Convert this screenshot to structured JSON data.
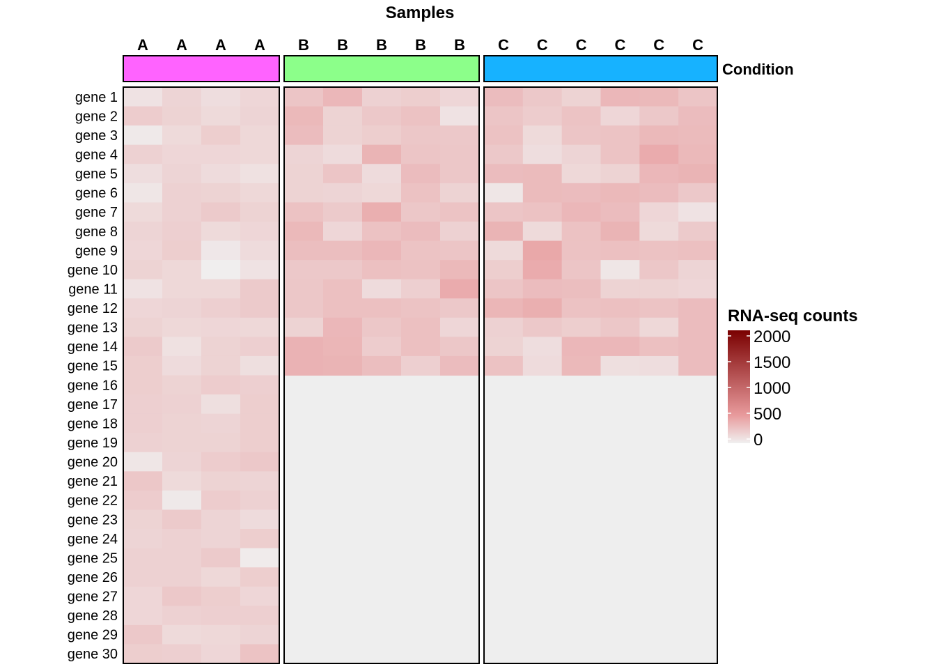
{
  "chart_data": {
    "type": "heatmap",
    "title": "Samples",
    "annotation_label": "Condition",
    "legend": {
      "title": "RNA-seq counts",
      "ticks": [
        "2000",
        "1500",
        "1000",
        "500",
        "0"
      ],
      "tick_values": [
        2000,
        1500,
        1000,
        500,
        0
      ],
      "range": [
        0,
        2000
      ],
      "placement": "right",
      "colors": {
        "low": "#F0F0F0",
        "mid": "#E89A9C",
        "high": "#7A0000",
        "na": "#EEEEEE"
      }
    },
    "groups": [
      {
        "name": "A",
        "color": "#FF63FF",
        "columns": [
          "A",
          "A",
          "A",
          "A"
        ],
        "n_genes": 30
      },
      {
        "name": "B",
        "color": "#8CFF8A",
        "columns": [
          "B",
          "B",
          "B",
          "B",
          "B"
        ],
        "n_genes": 15
      },
      {
        "name": "C",
        "color": "#17B2FF",
        "columns": [
          "C",
          "C",
          "C",
          "C",
          "C",
          "C"
        ],
        "n_genes": 15
      }
    ],
    "genes": [
      "gene 1",
      "gene 2",
      "gene 3",
      "gene 4",
      "gene 5",
      "gene 6",
      "gene 7",
      "gene 8",
      "gene 9",
      "gene 10",
      "gene 11",
      "gene 12",
      "gene 13",
      "gene 14",
      "gene 15",
      "gene 16",
      "gene 17",
      "gene 18",
      "gene 19",
      "gene 20",
      "gene 21",
      "gene 22",
      "gene 23",
      "gene 24",
      "gene 25",
      "gene 26",
      "gene 27",
      "gene 28",
      "gene 29",
      "gene 30"
    ],
    "values": {
      "A": [
        [
          80,
          160,
          110,
          150
        ],
        [
          210,
          170,
          130,
          160
        ],
        [
          40,
          130,
          200,
          140
        ],
        [
          180,
          150,
          150,
          140
        ],
        [
          110,
          160,
          120,
          90
        ],
        [
          60,
          180,
          170,
          140
        ],
        [
          130,
          180,
          220,
          170
        ],
        [
          160,
          190,
          130,
          150
        ],
        [
          150,
          200,
          50,
          120
        ],
        [
          170,
          140,
          10,
          80
        ],
        [
          80,
          140,
          140,
          220
        ],
        [
          150,
          160,
          190,
          220
        ],
        [
          170,
          140,
          150,
          140
        ],
        [
          220,
          90,
          170,
          190
        ],
        [
          200,
          120,
          170,
          100
        ],
        [
          200,
          170,
          210,
          190
        ],
        [
          190,
          180,
          100,
          200
        ],
        [
          190,
          170,
          160,
          200
        ],
        [
          180,
          170,
          170,
          200
        ],
        [
          60,
          160,
          210,
          230
        ],
        [
          240,
          130,
          170,
          160
        ],
        [
          210,
          40,
          210,
          180
        ],
        [
          170,
          220,
          160,
          120
        ],
        [
          160,
          180,
          160,
          200
        ],
        [
          180,
          180,
          220,
          30
        ],
        [
          180,
          180,
          140,
          200
        ],
        [
          150,
          230,
          200,
          150
        ],
        [
          150,
          180,
          190,
          190
        ],
        [
          230,
          130,
          140,
          160
        ],
        [
          200,
          190,
          150,
          260
        ]
      ],
      "B": [
        [
          250,
          330,
          180,
          200,
          150
        ],
        [
          320,
          170,
          230,
          270,
          80
        ],
        [
          300,
          170,
          200,
          240,
          230
        ],
        [
          160,
          120,
          350,
          250,
          240
        ],
        [
          170,
          250,
          120,
          300,
          240
        ],
        [
          170,
          160,
          140,
          270,
          170
        ],
        [
          270,
          220,
          380,
          240,
          260
        ],
        [
          320,
          150,
          270,
          300,
          180
        ],
        [
          290,
          290,
          330,
          260,
          250
        ],
        [
          230,
          230,
          280,
          270,
          320
        ],
        [
          240,
          280,
          120,
          190,
          400
        ],
        [
          240,
          280,
          280,
          260,
          230
        ],
        [
          170,
          330,
          240,
          280,
          150
        ],
        [
          360,
          340,
          210,
          280,
          240
        ],
        [
          360,
          350,
          290,
          190,
          300
        ]
      ],
      "C": [
        [
          300,
          230,
          170,
          330,
          320,
          250
        ],
        [
          250,
          210,
          260,
          150,
          230,
          300
        ],
        [
          270,
          130,
          250,
          260,
          320,
          310
        ],
        [
          230,
          110,
          160,
          260,
          400,
          320
        ],
        [
          300,
          310,
          140,
          170,
          330,
          350
        ],
        [
          60,
          310,
          300,
          320,
          300,
          230
        ],
        [
          250,
          270,
          330,
          300,
          150,
          80
        ],
        [
          350,
          130,
          270,
          350,
          130,
          220
        ],
        [
          130,
          420,
          270,
          280,
          270,
          280
        ],
        [
          200,
          400,
          250,
          60,
          240,
          160
        ],
        [
          250,
          300,
          290,
          170,
          170,
          150
        ],
        [
          340,
          380,
          270,
          280,
          260,
          300
        ],
        [
          180,
          230,
          200,
          240,
          140,
          300
        ],
        [
          170,
          110,
          330,
          330,
          280,
          300
        ],
        [
          270,
          120,
          320,
          100,
          110,
          300
        ]
      ]
    }
  }
}
